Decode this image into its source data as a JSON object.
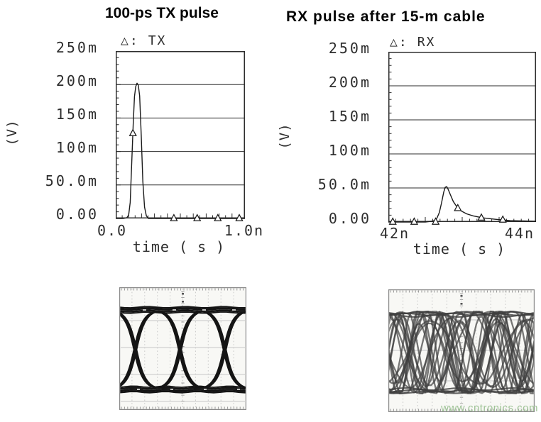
{
  "watermark": {
    "text": "www.cntronics.com",
    "color": "#a0c498"
  },
  "chart_data": [
    {
      "type": "line",
      "title": "100-ps TX pulse",
      "legend_marker": "△:",
      "xlabel": "time ( s )",
      "ylabel": "(V)",
      "yticks": [
        "250m",
        "200m",
        "150m",
        "100m",
        "50.0m",
        "0.00"
      ],
      "xticks": [
        "0.0",
        "1.0n"
      ],
      "xlim_ns": [
        0,
        1.0
      ],
      "ylim_v": [
        0,
        0.25
      ],
      "grid": "horizontal",
      "series": [
        {
          "name": "TX",
          "marker": "triangle",
          "x_ns": [
            0,
            0.06,
            0.085,
            0.1,
            0.112,
            0.125,
            0.135,
            0.145,
            0.155,
            0.165,
            0.175,
            0.185,
            0.197,
            0.21,
            0.223,
            0.237,
            0.252,
            0.3,
            1.0
          ],
          "y_v": [
            0,
            0,
            0.001,
            0.005,
            0.024,
            0.09,
            0.14,
            0.182,
            0.197,
            0.202,
            0.199,
            0.183,
            0.125,
            0.055,
            0.017,
            0.004,
            0,
            0,
            0
          ]
        }
      ],
      "marker_points": {
        "x_ns": [
          0.133,
          0.45,
          0.63,
          0.79,
          0.956
        ],
        "y_v": [
          0.127,
          0,
          0,
          0,
          0
        ]
      }
    },
    {
      "type": "line",
      "title": "RX pulse after 15-m cable",
      "legend_marker": "△:",
      "xlabel": "time ( s )",
      "ylabel": "(V)",
      "yticks": [
        "250m",
        "200m",
        "150m",
        "100m",
        "50.0m",
        "0.00"
      ],
      "xticks": [
        "42n",
        "44n"
      ],
      "xlim_ns": [
        42,
        44
      ],
      "ylim_v": [
        0,
        0.25
      ],
      "grid": "horizontal",
      "series": [
        {
          "name": "RX",
          "marker": "triangle",
          "x_ns": [
            42,
            42.5,
            42.58,
            42.62,
            42.66,
            42.69,
            42.72,
            42.75,
            42.77,
            42.79,
            42.81,
            42.84,
            42.88,
            42.93,
            42.99,
            43.06,
            43.15,
            43.28,
            43.45,
            43.65,
            44.0
          ],
          "y_v": [
            0,
            0,
            0.001,
            0.002,
            0.006,
            0.014,
            0.028,
            0.044,
            0.051,
            0.052,
            0.048,
            0.04,
            0.03,
            0.022,
            0.016,
            0.012,
            0.009,
            0.006,
            0.004,
            0.002,
            0.001
          ]
        }
      ],
      "marker_points": {
        "x_ns": [
          42.06,
          42.35,
          42.64,
          42.94,
          43.26,
          43.55
        ],
        "y_v": [
          0,
          0,
          0,
          0.02,
          0.006,
          0.003
        ]
      }
    },
    {
      "type": "eye-diagram",
      "label": "TX eye diagram (oscilloscope)",
      "appearance": "open eye, three crossings, 10-division graticule"
    },
    {
      "type": "eye-diagram",
      "label": "RX eye diagram after 15-m cable (oscilloscope)",
      "appearance": "closed eye, dense overlapping traces, 10-division graticule"
    }
  ]
}
